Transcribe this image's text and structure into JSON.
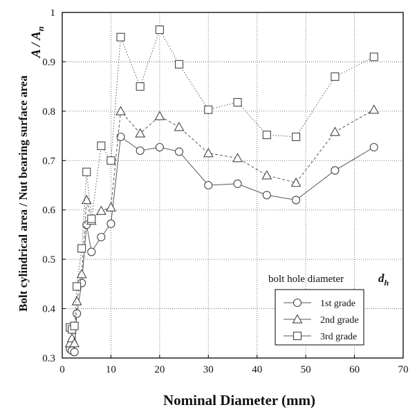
{
  "chart_data": {
    "type": "line",
    "xlabel": "Nominal Diameter  (mm)",
    "ylabel": "Bolt cylindrical area / Nut bearing surface area",
    "ylabel_ratio_main": "A / A",
    "ylabel_ratio_sub": "n",
    "xlim": [
      0,
      70
    ],
    "ylim": [
      0.3,
      1.0
    ],
    "x_ticks": [
      0,
      10,
      20,
      30,
      40,
      50,
      60,
      70
    ],
    "y_ticks": [
      0.3,
      0.4,
      0.5,
      0.6,
      0.7,
      0.8,
      0.9,
      1.0
    ],
    "grid": true,
    "legend": {
      "title": "bolt hole diameter",
      "title_symbol": "d",
      "title_symbol_sub": "h",
      "placement": "bottom-right"
    },
    "x": [
      1.6,
      2,
      2.5,
      3,
      4,
      5,
      6,
      8,
      10,
      12,
      16,
      20,
      24,
      30,
      36,
      42,
      48,
      56,
      64
    ],
    "series": [
      {
        "name": "1st grade",
        "marker": "circle",
        "values": [
          0.318,
          0.315,
          0.312,
          0.39,
          0.452,
          0.57,
          0.515,
          0.545,
          0.572,
          0.748,
          0.72,
          0.727,
          0.718,
          0.65,
          0.653,
          0.63,
          0.62,
          0.68,
          0.727
        ]
      },
      {
        "name": "2nd grade",
        "marker": "triangle",
        "values": [
          0.33,
          0.34,
          0.33,
          0.415,
          0.47,
          0.62,
          0.578,
          0.598,
          0.605,
          0.8,
          0.755,
          0.79,
          0.768,
          0.715,
          0.705,
          0.67,
          0.655,
          0.758,
          0.803
        ]
      },
      {
        "name": "3rd grade",
        "marker": "square",
        "values": [
          0.362,
          0.358,
          0.365,
          0.445,
          0.522,
          0.677,
          0.582,
          0.73,
          0.7,
          0.95,
          0.85,
          0.965,
          0.895,
          0.803,
          0.818,
          0.752,
          0.748,
          0.87,
          0.91
        ]
      }
    ]
  }
}
